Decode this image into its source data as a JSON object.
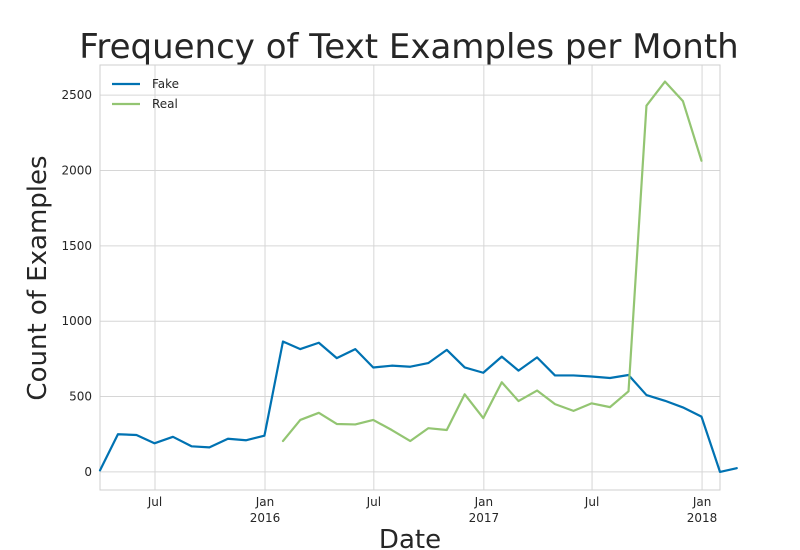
{
  "chart_data": {
    "type": "line",
    "title": "Frequency of Text Examples per Month",
    "xlabel": "Date",
    "ylabel": "Count of Examples",
    "grid": true,
    "legend_position": "top-left",
    "x_range": [
      "2015-03-31",
      "2018-01-31"
    ],
    "ylim": [
      -120,
      2700
    ],
    "y_ticks": [
      0,
      500,
      1000,
      1500,
      2000,
      2500
    ],
    "x_ticks": [
      {
        "date": "2015-07-01",
        "line1": "Jul",
        "line2": ""
      },
      {
        "date": "2016-01-01",
        "line1": "Jan",
        "line2": "2016"
      },
      {
        "date": "2016-07-01",
        "line1": "Jul",
        "line2": ""
      },
      {
        "date": "2017-01-01",
        "line1": "Jan",
        "line2": "2017"
      },
      {
        "date": "2017-07-01",
        "line1": "Jul",
        "line2": ""
      },
      {
        "date": "2018-01-01",
        "line1": "Jan",
        "line2": "2018"
      }
    ],
    "series": [
      {
        "name": "Fake",
        "color": "#0072b2",
        "points": [
          {
            "x": "2015-03-31",
            "y": 10
          },
          {
            "x": "2015-04-30",
            "y": 250
          },
          {
            "x": "2015-05-31",
            "y": 245
          },
          {
            "x": "2015-06-30",
            "y": 190
          },
          {
            "x": "2015-07-31",
            "y": 233
          },
          {
            "x": "2015-08-31",
            "y": 170
          },
          {
            "x": "2015-09-30",
            "y": 163
          },
          {
            "x": "2015-10-31",
            "y": 220
          },
          {
            "x": "2015-11-30",
            "y": 210
          },
          {
            "x": "2015-12-31",
            "y": 240
          },
          {
            "x": "2016-01-31",
            "y": 865
          },
          {
            "x": "2016-02-29",
            "y": 815
          },
          {
            "x": "2016-03-31",
            "y": 857
          },
          {
            "x": "2016-04-30",
            "y": 755
          },
          {
            "x": "2016-05-31",
            "y": 815
          },
          {
            "x": "2016-06-30",
            "y": 693
          },
          {
            "x": "2016-07-31",
            "y": 705
          },
          {
            "x": "2016-08-31",
            "y": 698
          },
          {
            "x": "2016-09-30",
            "y": 722
          },
          {
            "x": "2016-10-31",
            "y": 810
          },
          {
            "x": "2016-11-30",
            "y": 693
          },
          {
            "x": "2016-12-31",
            "y": 658
          },
          {
            "x": "2017-01-31",
            "y": 765
          },
          {
            "x": "2017-02-28",
            "y": 672
          },
          {
            "x": "2017-03-31",
            "y": 760
          },
          {
            "x": "2017-04-30",
            "y": 640
          },
          {
            "x": "2017-05-31",
            "y": 640
          },
          {
            "x": "2017-06-30",
            "y": 633
          },
          {
            "x": "2017-07-31",
            "y": 623
          },
          {
            "x": "2017-08-31",
            "y": 643
          },
          {
            "x": "2017-09-30",
            "y": 510
          },
          {
            "x": "2017-10-31",
            "y": 472
          },
          {
            "x": "2017-11-30",
            "y": 428
          },
          {
            "x": "2017-12-31",
            "y": 367
          },
          {
            "x": "2018-01-31",
            "y": 0
          },
          {
            "x": "2018-02-28",
            "y": 25
          }
        ]
      },
      {
        "name": "Real",
        "color": "#93c572",
        "points": [
          {
            "x": "2016-01-31",
            "y": 205
          },
          {
            "x": "2016-02-29",
            "y": 345
          },
          {
            "x": "2016-03-31",
            "y": 392
          },
          {
            "x": "2016-04-30",
            "y": 318
          },
          {
            "x": "2016-05-31",
            "y": 315
          },
          {
            "x": "2016-06-30",
            "y": 345
          },
          {
            "x": "2016-07-31",
            "y": 278
          },
          {
            "x": "2016-08-31",
            "y": 205
          },
          {
            "x": "2016-09-30",
            "y": 290
          },
          {
            "x": "2016-10-31",
            "y": 278
          },
          {
            "x": "2016-11-30",
            "y": 515
          },
          {
            "x": "2016-12-31",
            "y": 357
          },
          {
            "x": "2017-01-31",
            "y": 595
          },
          {
            "x": "2017-02-28",
            "y": 470
          },
          {
            "x": "2017-03-31",
            "y": 540
          },
          {
            "x": "2017-04-30",
            "y": 450
          },
          {
            "x": "2017-05-31",
            "y": 405
          },
          {
            "x": "2017-06-30",
            "y": 455
          },
          {
            "x": "2017-07-31",
            "y": 430
          },
          {
            "x": "2017-08-31",
            "y": 535
          },
          {
            "x": "2017-09-30",
            "y": 2430
          },
          {
            "x": "2017-10-31",
            "y": 2590
          },
          {
            "x": "2017-11-30",
            "y": 2460
          },
          {
            "x": "2017-12-31",
            "y": 2065
          }
        ]
      }
    ]
  }
}
